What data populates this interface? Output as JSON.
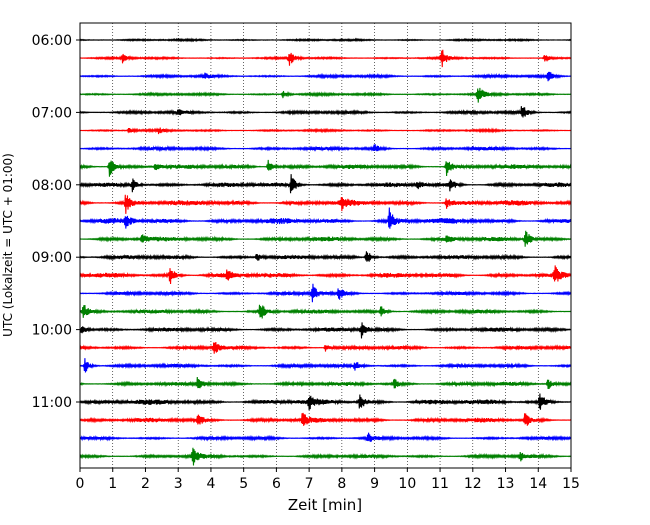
{
  "chart_data": {
    "type": "line",
    "title": "",
    "xlabel": "Zeit  [min]",
    "ylabel": "UTC (Lokalzeit = UTC + 01:00)",
    "xlim": [
      0,
      15
    ],
    "x_ticks": [
      "0",
      "1",
      "2",
      "3",
      "4",
      "5",
      "6",
      "7",
      "8",
      "9",
      "10",
      "11",
      "12",
      "13",
      "14",
      "15"
    ],
    "y_ticks": [
      {
        "label": "06:00",
        "row": 0
      },
      {
        "label": "07:00",
        "row": 4
      },
      {
        "label": "08:00",
        "row": 8
      },
      {
        "label": "09:00",
        "row": 12
      },
      {
        "label": "10:00",
        "row": 16
      },
      {
        "label": "11:00",
        "row": 20
      }
    ],
    "vertical_grid": true,
    "colors": [
      "#000000",
      "#ff0000",
      "#0000ff",
      "#008000"
    ],
    "traces": [
      {
        "start": "06:00",
        "color": "#000000",
        "noise": 0.9,
        "events": []
      },
      {
        "start": "06:15",
        "color": "#ff0000",
        "noise": 1.0,
        "events": [
          {
            "t": 1.3,
            "a": 5
          },
          {
            "t": 6.4,
            "a": 8
          },
          {
            "t": 11.05,
            "a": 10
          },
          {
            "t": 14.2,
            "a": 5
          }
        ]
      },
      {
        "start": "06:30",
        "color": "#0000ff",
        "noise": 1.3,
        "events": [
          {
            "t": 3.8,
            "a": 3
          },
          {
            "t": 14.3,
            "a": 7
          }
        ]
      },
      {
        "start": "06:45",
        "color": "#008000",
        "noise": 1.2,
        "events": [
          {
            "t": 6.2,
            "a": 4
          },
          {
            "t": 12.15,
            "a": 10
          }
        ]
      },
      {
        "start": "07:00",
        "color": "#000000",
        "noise": 1.5,
        "events": [
          {
            "t": 3.0,
            "a": 3
          },
          {
            "t": 13.5,
            "a": 8
          }
        ]
      },
      {
        "start": "07:15",
        "color": "#ff0000",
        "noise": 1.0,
        "events": [
          {
            "t": 1.5,
            "a": 3
          },
          {
            "t": 2.4,
            "a": 3
          }
        ]
      },
      {
        "start": "07:30",
        "color": "#0000ff",
        "noise": 1.6,
        "events": [
          {
            "t": 9.0,
            "a": 4
          }
        ]
      },
      {
        "start": "07:45",
        "color": "#008000",
        "noise": 2.2,
        "events": [
          {
            "t": 0.9,
            "a": 11
          },
          {
            "t": 2.3,
            "a": 5
          },
          {
            "t": 5.75,
            "a": 7
          },
          {
            "t": 11.2,
            "a": 10
          }
        ]
      },
      {
        "start": "08:00",
        "color": "#000000",
        "noise": 2.2,
        "events": [
          {
            "t": 1.6,
            "a": 8
          },
          {
            "t": 6.45,
            "a": 11
          },
          {
            "t": 10.3,
            "a": 5
          },
          {
            "t": 11.3,
            "a": 7
          }
        ]
      },
      {
        "start": "08:15",
        "color": "#ff0000",
        "noise": 2.6,
        "events": [
          {
            "t": 1.4,
            "a": 10
          },
          {
            "t": 8.0,
            "a": 6
          },
          {
            "t": 11.2,
            "a": 6
          }
        ]
      },
      {
        "start": "08:30",
        "color": "#0000ff",
        "noise": 2.8,
        "events": [
          {
            "t": 1.4,
            "a": 7
          },
          {
            "t": 9.45,
            "a": 12
          }
        ]
      },
      {
        "start": "08:45",
        "color": "#008000",
        "noise": 2.2,
        "events": [
          {
            "t": 1.9,
            "a": 5
          },
          {
            "t": 11.2,
            "a": 5
          },
          {
            "t": 13.6,
            "a": 12
          }
        ]
      },
      {
        "start": "09:00",
        "color": "#000000",
        "noise": 2.0,
        "events": [
          {
            "t": 5.4,
            "a": 5
          },
          {
            "t": 8.75,
            "a": 9
          }
        ]
      },
      {
        "start": "09:15",
        "color": "#ff0000",
        "noise": 2.4,
        "events": [
          {
            "t": 2.75,
            "a": 9
          },
          {
            "t": 4.5,
            "a": 5
          },
          {
            "t": 14.5,
            "a": 9
          }
        ]
      },
      {
        "start": "09:30",
        "color": "#0000ff",
        "noise": 1.6,
        "events": [
          {
            "t": 7.1,
            "a": 10
          },
          {
            "t": 7.9,
            "a": 7
          }
        ]
      },
      {
        "start": "09:45",
        "color": "#008000",
        "noise": 1.8,
        "events": [
          {
            "t": 0.1,
            "a": 9
          },
          {
            "t": 5.5,
            "a": 11
          },
          {
            "t": 9.2,
            "a": 6
          }
        ]
      },
      {
        "start": "10:00",
        "color": "#000000",
        "noise": 2.0,
        "events": [
          {
            "t": 0.05,
            "a": 6
          },
          {
            "t": 8.6,
            "a": 8
          }
        ]
      },
      {
        "start": "10:15",
        "color": "#ff0000",
        "noise": 1.8,
        "events": [
          {
            "t": 4.1,
            "a": 7
          },
          {
            "t": 7.5,
            "a": 4
          }
        ]
      },
      {
        "start": "10:30",
        "color": "#0000ff",
        "noise": 1.7,
        "events": [
          {
            "t": 0.15,
            "a": 8
          },
          {
            "t": 8.4,
            "a": 5
          }
        ]
      },
      {
        "start": "10:45",
        "color": "#008000",
        "noise": 1.9,
        "events": [
          {
            "t": 3.6,
            "a": 8
          },
          {
            "t": 9.6,
            "a": 5
          },
          {
            "t": 14.3,
            "a": 6
          }
        ]
      },
      {
        "start": "11:00",
        "color": "#000000",
        "noise": 2.6,
        "events": [
          {
            "t": 7.0,
            "a": 6
          },
          {
            "t": 8.55,
            "a": 8
          },
          {
            "t": 14.05,
            "a": 10
          }
        ]
      },
      {
        "start": "11:15",
        "color": "#ff0000",
        "noise": 2.2,
        "events": [
          {
            "t": 3.6,
            "a": 6
          },
          {
            "t": 6.8,
            "a": 7
          },
          {
            "t": 13.6,
            "a": 8
          }
        ]
      },
      {
        "start": "11:30",
        "color": "#0000ff",
        "noise": 1.5,
        "events": [
          {
            "t": 8.8,
            "a": 5
          }
        ]
      },
      {
        "start": "11:45",
        "color": "#008000",
        "noise": 1.6,
        "events": [
          {
            "t": 3.45,
            "a": 10
          },
          {
            "t": 13.45,
            "a": 5
          }
        ]
      }
    ]
  }
}
